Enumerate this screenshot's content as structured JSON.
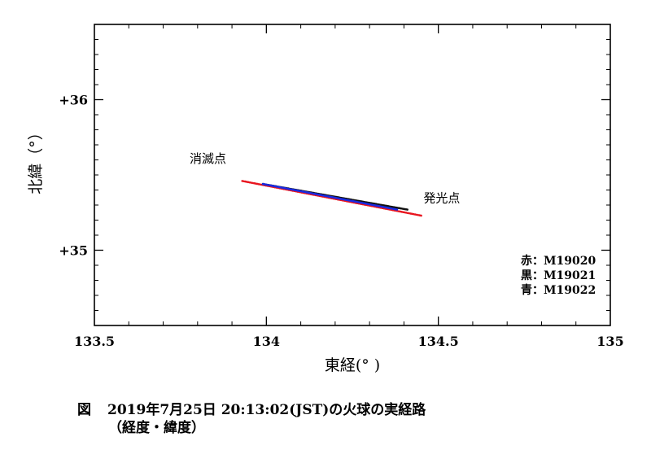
{
  "chart_data": {
    "type": "scatter",
    "xlabel": "東経(° )",
    "ylabel": "北緯（°）",
    "xlim": [
      133.5,
      135.0
    ],
    "ylim": [
      34.5,
      36.5
    ],
    "x_ticks": [
      {
        "value": 133.5,
        "label": "133.5"
      },
      {
        "value": 134.0,
        "label": "134"
      },
      {
        "value": 134.5,
        "label": "134.5"
      },
      {
        "value": 135.0,
        "label": "135"
      }
    ],
    "y_ticks": [
      {
        "value": 35.0,
        "label": "+35"
      },
      {
        "value": 36.0,
        "label": "+36"
      }
    ],
    "grid": false,
    "legend_position": "bottom-right",
    "legend": [
      {
        "label": "赤：M19020",
        "color": "#e8141e"
      },
      {
        "label": "黒：M19021",
        "color": "#111111"
      },
      {
        "label": "青：M19022",
        "color": "#1a2ae0"
      }
    ],
    "annotations": [
      {
        "text": "消滅点",
        "x": 133.83,
        "y": 35.58
      },
      {
        "text": "発光点",
        "x": 134.51,
        "y": 35.32
      }
    ],
    "series": [
      {
        "name": "M19020",
        "color": "#e8141e",
        "x": [
          133.93,
          134.45
        ],
        "y": [
          35.46,
          35.23
        ]
      },
      {
        "name": "M19021",
        "color": "#111111",
        "x": [
          133.99,
          134.41
        ],
        "y": [
          35.44,
          35.27
        ]
      },
      {
        "name": "M19022",
        "color": "#1a2ae0",
        "x": [
          133.99,
          134.38
        ],
        "y": [
          35.44,
          35.27
        ]
      }
    ]
  },
  "caption": {
    "figure_label": "図",
    "title": "2019年7月25日 20:13:02(JST)の火球の実経路",
    "subtitle": "（経度・緯度）"
  }
}
